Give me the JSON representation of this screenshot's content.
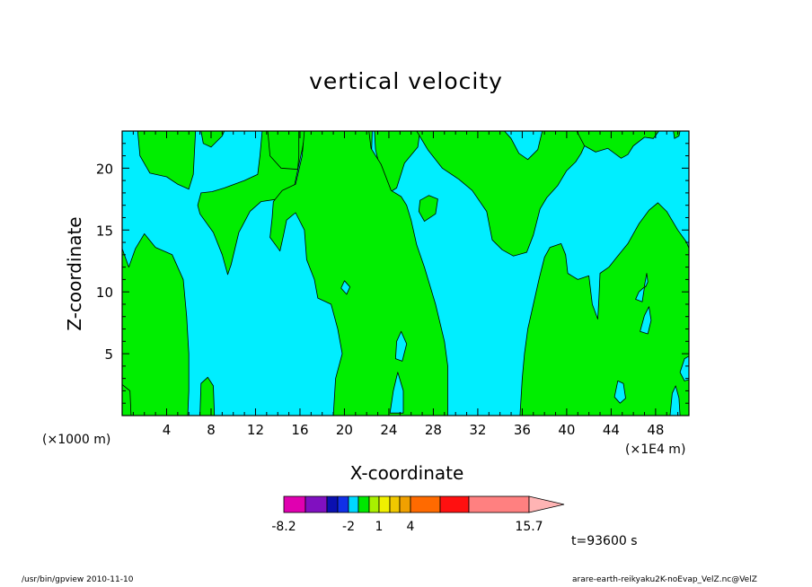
{
  "chart_data": {
    "type": "heatmap",
    "title": "vertical velocity",
    "xlabel": "X-coordinate",
    "ylabel": "Z-coordinate",
    "x_unit_label": "(×1000 m)",
    "x_unit_label_right": "(×1E4 m)",
    "xlim": [
      0,
      51
    ],
    "ylim": [
      0,
      23
    ],
    "xticks": [
      4,
      8,
      12,
      16,
      20,
      24,
      28,
      32,
      36,
      40,
      44,
      48
    ],
    "yticks": [
      5,
      10,
      15,
      20
    ],
    "background_color": "#00eeff",
    "fill_color": "#00ee00",
    "colorbar": {
      "colors": [
        "#e000b0",
        "#8010c0",
        "#0a10b0",
        "#1030e8",
        "#00d8ff",
        "#00e800",
        "#a8f000",
        "#f0f000",
        "#f0c800",
        "#f0a000",
        "#ff6a00",
        "#ff1010",
        "#ff8080",
        "#ffb4b4"
      ],
      "tick_labels": [
        "-8.2",
        "-2",
        "1",
        "4",
        "15.7"
      ]
    },
    "time_label": "t=93600 s",
    "regions": [
      [
        [
          0,
          0
        ],
        [
          0,
          13.5
        ],
        [
          0.6,
          12
        ],
        [
          1.2,
          13.5
        ],
        [
          2,
          14.7
        ],
        [
          3,
          13.6
        ],
        [
          4.5,
          13
        ],
        [
          5.5,
          11
        ],
        [
          5.8,
          8
        ],
        [
          6,
          5
        ],
        [
          6,
          2
        ],
        [
          5.9,
          0
        ]
      ],
      [
        [
          0,
          0
        ],
        [
          0,
          2.5
        ],
        [
          0.7,
          2
        ],
        [
          0.8,
          0
        ]
      ],
      [
        [
          7,
          0
        ],
        [
          7.1,
          2.6
        ],
        [
          7.7,
          3.1
        ],
        [
          8.2,
          2.4
        ],
        [
          8.3,
          0
        ]
      ],
      [
        [
          1.4,
          23
        ],
        [
          1.6,
          21
        ],
        [
          2.5,
          19.6
        ],
        [
          4,
          19.3
        ],
        [
          5,
          18.7
        ],
        [
          6,
          18.3
        ],
        [
          6.4,
          19.5
        ],
        [
          6.6,
          23
        ]
      ],
      [
        [
          7.1,
          23
        ],
        [
          7.3,
          22
        ],
        [
          8,
          21.7
        ],
        [
          9,
          22.6
        ],
        [
          9.2,
          23
        ]
      ],
      [
        [
          16.5,
          23
        ],
        [
          16.2,
          21.5
        ],
        [
          15.5,
          18.6
        ],
        [
          14,
          17.5
        ],
        [
          12.5,
          17.3
        ],
        [
          11.5,
          16.5
        ],
        [
          10.5,
          14.8
        ],
        [
          9.8,
          12.2
        ],
        [
          9.5,
          11.4
        ],
        [
          9,
          13
        ],
        [
          8.2,
          14.8
        ],
        [
          7,
          16.3
        ],
        [
          6.8,
          17
        ],
        [
          7.1,
          18
        ],
        [
          8.1,
          18.1
        ],
        [
          9.2,
          18.4
        ],
        [
          11,
          19
        ],
        [
          12.2,
          19.5
        ],
        [
          12.4,
          21
        ],
        [
          12.6,
          23
        ]
      ],
      [
        [
          13.1,
          23
        ],
        [
          13.3,
          21
        ],
        [
          14.3,
          20
        ],
        [
          15.8,
          19.9
        ],
        [
          15.9,
          21
        ],
        [
          15.9,
          23
        ]
      ],
      [
        [
          21,
          23
        ],
        [
          22,
          21.5
        ],
        [
          22.4,
          20
        ],
        [
          22.5,
          23
        ]
      ],
      [
        [
          22.7,
          23
        ],
        [
          22.8,
          21.5
        ],
        [
          23.2,
          20
        ],
        [
          24,
          18
        ],
        [
          24.7,
          18.4
        ],
        [
          25.4,
          20.4
        ],
        [
          26.6,
          21.7
        ],
        [
          26.8,
          23
        ]
      ],
      [
        [
          26.7,
          16.5
        ],
        [
          27.2,
          15.7
        ],
        [
          28.2,
          16.3
        ],
        [
          28.4,
          17.5
        ],
        [
          27.6,
          17.8
        ],
        [
          26.8,
          17.4
        ]
      ],
      [
        [
          19,
          0
        ],
        [
          19.2,
          3
        ],
        [
          19.8,
          5
        ],
        [
          19.4,
          7
        ],
        [
          18.8,
          9
        ],
        [
          17.6,
          9.5
        ],
        [
          17.3,
          11
        ],
        [
          16.6,
          12.6
        ],
        [
          16.4,
          15
        ],
        [
          15.6,
          16.4
        ],
        [
          14.8,
          15.8
        ],
        [
          14.5,
          14.5
        ],
        [
          14.2,
          13.3
        ],
        [
          13.8,
          13.8
        ],
        [
          13.3,
          14.4
        ],
        [
          13.5,
          16
        ],
        [
          13.6,
          17.3
        ],
        [
          14.4,
          18.2
        ],
        [
          15.6,
          18.7
        ],
        [
          16.2,
          21
        ],
        [
          16.4,
          23
        ],
        [
          22.2,
          23
        ],
        [
          22.4,
          21.6
        ],
        [
          23.3,
          20.3
        ],
        [
          24.2,
          18.2
        ],
        [
          25.1,
          17.7
        ],
        [
          25.6,
          17
        ],
        [
          26,
          15.8
        ],
        [
          26.5,
          13.8
        ],
        [
          27.2,
          12
        ],
        [
          28.2,
          9
        ],
        [
          29,
          6
        ],
        [
          29.3,
          4
        ],
        [
          29.3,
          0
        ]
      ],
      [
        [
          26.5,
          23
        ],
        [
          27.5,
          21.5
        ],
        [
          28.8,
          20
        ],
        [
          30.3,
          19.1
        ],
        [
          31.5,
          18.2
        ],
        [
          32.8,
          16.5
        ],
        [
          33.3,
          14.2
        ],
        [
          34.2,
          13.4
        ],
        [
          35.2,
          12.9
        ],
        [
          36.4,
          13.2
        ],
        [
          37,
          14.6
        ],
        [
          37.6,
          16.7
        ],
        [
          38.2,
          17.6
        ],
        [
          39.2,
          18.6
        ],
        [
          40,
          19.8
        ],
        [
          40.8,
          20.5
        ],
        [
          41.3,
          21.2
        ],
        [
          41.7,
          22
        ],
        [
          41.9,
          23
        ],
        [
          37.8,
          23
        ],
        [
          37.4,
          21.5
        ],
        [
          36.5,
          20.7
        ],
        [
          35.7,
          21.2
        ],
        [
          35,
          22.4
        ],
        [
          34.4,
          23
        ]
      ],
      [
        [
          35.8,
          0
        ],
        [
          36,
          3
        ],
        [
          36.2,
          5
        ],
        [
          36.5,
          7
        ],
        [
          37,
          9
        ],
        [
          37.5,
          11
        ],
        [
          38,
          12.8
        ],
        [
          38.5,
          13.6
        ],
        [
          39.5,
          13.9
        ],
        [
          39.9,
          13
        ],
        [
          40.1,
          11.5
        ],
        [
          41,
          11
        ],
        [
          42,
          11.3
        ],
        [
          42.3,
          9
        ],
        [
          42.8,
          7.8
        ],
        [
          42.9,
          9.5
        ],
        [
          43,
          11.5
        ],
        [
          43.8,
          12
        ],
        [
          44.5,
          12.8
        ],
        [
          45.5,
          13.9
        ],
        [
          46.5,
          15.5
        ],
        [
          47.4,
          16.6
        ],
        [
          48.2,
          17.2
        ],
        [
          49,
          16.5
        ],
        [
          50,
          15
        ],
        [
          50.8,
          14
        ],
        [
          51,
          13.5
        ],
        [
          51,
          0
        ]
      ],
      [
        [
          40.9,
          23
        ],
        [
          41.6,
          21.8
        ],
        [
          42.6,
          21.3
        ],
        [
          43.7,
          21.6
        ],
        [
          44.9,
          20.8
        ],
        [
          45.5,
          21.1
        ],
        [
          46,
          21.8
        ],
        [
          47,
          22.5
        ],
        [
          47.8,
          22.4
        ],
        [
          48.3,
          23
        ]
      ],
      [
        [
          49.6,
          23
        ],
        [
          49.7,
          22.4
        ],
        [
          50.1,
          22.6
        ],
        [
          50.2,
          23
        ]
      ]
    ],
    "holes": [
      [
        [
          19.7,
          10.3
        ],
        [
          20.2,
          9.8
        ],
        [
          20.5,
          10.4
        ],
        [
          20,
          10.9
        ]
      ],
      [
        [
          24.6,
          4.6
        ],
        [
          25.2,
          4.4
        ],
        [
          25.6,
          5.8
        ],
        [
          25.1,
          6.8
        ],
        [
          24.7,
          6
        ]
      ],
      [
        [
          24.1,
          0.2
        ],
        [
          24.4,
          2
        ],
        [
          24.8,
          3.5
        ],
        [
          25.3,
          2
        ],
        [
          25.3,
          0.2
        ]
      ],
      [
        [
          44.3,
          1.5
        ],
        [
          44.6,
          2.8
        ],
        [
          45.1,
          2.6
        ],
        [
          45.3,
          1.4
        ],
        [
          44.8,
          1
        ]
      ],
      [
        [
          49.3,
          0
        ],
        [
          49.5,
          1.8
        ],
        [
          49.8,
          2.4
        ],
        [
          50.1,
          1.4
        ],
        [
          50.2,
          0
        ]
      ],
      [
        [
          50.2,
          3.5
        ],
        [
          50.6,
          4.6
        ],
        [
          51,
          4.8
        ],
        [
          51,
          2.9
        ],
        [
          50.6,
          2.8
        ]
      ],
      [
        [
          46.6,
          6.8
        ],
        [
          47,
          8.1
        ],
        [
          47.4,
          8.8
        ],
        [
          47.6,
          7.7
        ],
        [
          47.3,
          6.6
        ]
      ],
      [
        [
          47,
          10.5
        ],
        [
          47.2,
          11.5
        ],
        [
          47.3,
          10.8
        ],
        [
          47.1,
          10.4
        ]
      ],
      [
        [
          46.2,
          9.4
        ],
        [
          46.5,
          10
        ],
        [
          47,
          10.4
        ],
        [
          46.8,
          9.2
        ]
      ]
    ]
  },
  "footer": {
    "left": "/usr/bin/gpview   2010-11-10",
    "right": "arare-earth-reikyaku2K-noEvap_VelZ.nc@VelZ"
  }
}
